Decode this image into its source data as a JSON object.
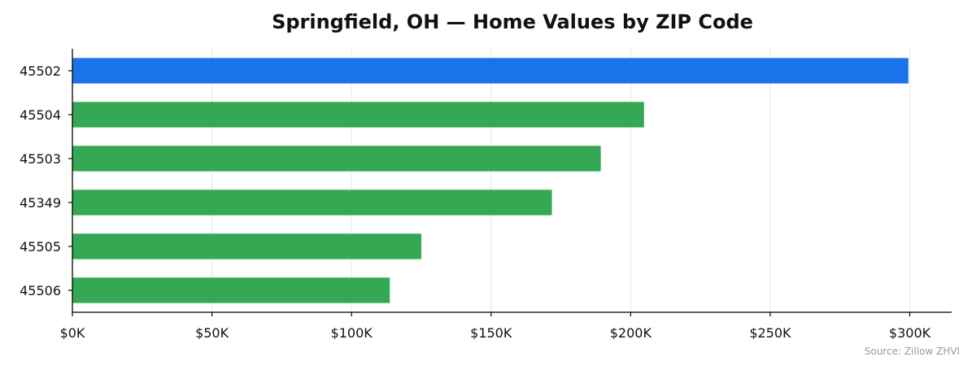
{
  "chart_data": {
    "type": "bar",
    "orientation": "horizontal",
    "title": "Springfield, OH — Home Values by ZIP Code",
    "xlabel": "",
    "ylabel": "",
    "categories": [
      "45502",
      "45504",
      "45503",
      "45349",
      "45505",
      "45506"
    ],
    "values": [
      299500,
      204800,
      189300,
      171800,
      125000,
      113700
    ],
    "bar_colors": [
      "#1a73e8",
      "#34a853",
      "#34a853",
      "#34a853",
      "#34a853",
      "#34a853"
    ],
    "xlim": [
      0,
      315000
    ],
    "xticks": [
      0,
      50000,
      100000,
      150000,
      200000,
      250000,
      300000
    ],
    "xtick_labels": [
      "$0K",
      "$50K",
      "$100K",
      "$150K",
      "$200K",
      "$250K",
      "$300K"
    ],
    "grid": "vertical",
    "source": "Source: Zillow ZHVI"
  }
}
